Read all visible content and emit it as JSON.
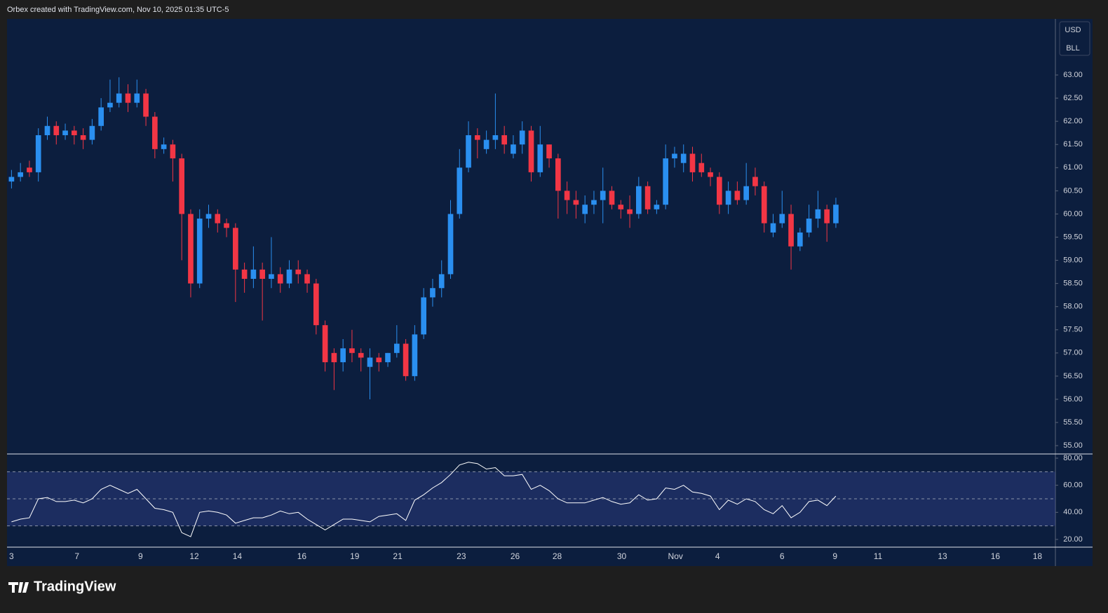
{
  "header_text": "Orbex created with TradingView.com, Nov 10, 2025 01:35 UTC-5",
  "currency": "USD",
  "unit": "BLL",
  "brand": "TradingView",
  "chart_data": [
    {
      "type": "candlestick",
      "up_color": "#2a8ff0",
      "down_color": "#f23645",
      "xlim": [
        -0.5,
        116.5
      ],
      "ylim": [
        54.82,
        64.21
      ],
      "yticks": [
        {
          "value": 55,
          "label": "55.00"
        },
        {
          "value": 55.5,
          "label": "55.50"
        },
        {
          "value": 56,
          "label": "56.00"
        },
        {
          "value": 56.5,
          "label": "56.50"
        },
        {
          "value": 57,
          "label": "57.00"
        },
        {
          "value": 57.5,
          "label": "57.50"
        },
        {
          "value": 58,
          "label": "58.00"
        },
        {
          "value": 58.5,
          "label": "58.50"
        },
        {
          "value": 59,
          "label": "59.00"
        },
        {
          "value": 59.5,
          "label": "59.50"
        },
        {
          "value": 60,
          "label": "60.00"
        },
        {
          "value": 60.5,
          "label": "60.50"
        },
        {
          "value": 61,
          "label": "61.00"
        },
        {
          "value": 61.5,
          "label": "61.50"
        },
        {
          "value": 62,
          "label": "62.00"
        },
        {
          "value": 62.5,
          "label": "62.50"
        },
        {
          "value": 63,
          "label": "63.00"
        }
      ],
      "open": [
        60.7,
        60.8,
        61.0,
        60.9,
        61.7,
        61.9,
        61.7,
        61.8,
        61.7,
        61.6,
        61.9,
        62.3,
        62.4,
        62.6,
        62.4,
        62.6,
        62.1,
        61.4,
        61.5,
        61.2,
        60.0,
        58.5,
        59.9,
        60.0,
        59.8,
        59.7,
        58.8,
        58.6,
        58.8,
        58.6,
        58.7,
        58.5,
        58.8,
        58.7,
        58.5,
        57.6,
        57.0,
        56.8,
        57.1,
        57.0,
        56.7,
        56.9,
        56.8,
        57.0,
        57.2,
        56.5,
        57.4,
        58.2,
        58.4,
        58.7,
        60.0,
        61.0,
        61.7,
        61.4,
        61.6,
        61.7,
        61.3,
        61.5,
        61.8,
        60.9,
        61.5,
        61.2,
        60.5,
        60.3,
        60.0,
        60.2,
        60.3,
        60.5,
        60.2,
        60.1,
        60.0,
        60.6,
        60.1,
        60.2,
        61.2,
        61.1,
        61.3,
        61.1,
        60.9,
        60.8,
        60.2,
        60.5,
        60.3,
        60.8,
        60.6,
        59.6,
        59.8,
        60.0,
        59.3,
        59.6,
        59.9,
        60.1,
        59.8
      ],
      "high": [
        60.95,
        61.1,
        61.15,
        61.85,
        62.1,
        62.0,
        61.95,
        61.9,
        61.85,
        62.05,
        62.5,
        62.9,
        62.95,
        62.8,
        62.9,
        62.7,
        62.2,
        61.65,
        61.6,
        61.3,
        60.1,
        60.1,
        60.2,
        60.1,
        59.9,
        59.8,
        58.95,
        59.3,
        58.95,
        59.5,
        58.85,
        59.0,
        59.0,
        58.8,
        58.6,
        57.7,
        57.1,
        57.3,
        57.5,
        57.1,
        57.1,
        57.0,
        57.0,
        57.6,
        57.3,
        57.6,
        58.4,
        58.6,
        59.0,
        60.3,
        61.4,
        62.0,
        61.85,
        61.8,
        62.6,
        61.9,
        61.7,
        62.0,
        61.9,
        61.9,
        61.5,
        61.3,
        60.7,
        60.5,
        60.4,
        60.5,
        61.0,
        60.6,
        60.3,
        60.4,
        60.8,
        60.7,
        60.3,
        61.5,
        61.45,
        61.5,
        61.45,
        61.3,
        61.0,
        60.9,
        60.7,
        60.7,
        61.1,
        61.0,
        60.7,
        60.0,
        60.5,
        60.2,
        59.7,
        60.2,
        60.5,
        60.2,
        60.35
      ],
      "low": [
        60.55,
        60.7,
        60.8,
        60.7,
        61.6,
        61.5,
        61.6,
        61.5,
        61.4,
        61.5,
        61.8,
        62.2,
        62.3,
        62.2,
        62.3,
        61.9,
        61.2,
        61.3,
        60.7,
        59.0,
        58.2,
        58.4,
        59.7,
        59.6,
        59.5,
        58.1,
        58.3,
        58.4,
        57.7,
        58.4,
        58.3,
        58.4,
        58.5,
        58.3,
        57.4,
        56.6,
        56.2,
        56.6,
        56.8,
        56.6,
        56.0,
        56.6,
        56.7,
        56.9,
        56.4,
        56.4,
        57.3,
        58.0,
        58.2,
        58.6,
        59.9,
        60.9,
        61.2,
        61.3,
        61.4,
        61.3,
        61.2,
        61.3,
        60.7,
        60.8,
        61.0,
        59.9,
        60.0,
        59.9,
        59.8,
        60.0,
        59.8,
        60.1,
        59.9,
        59.7,
        59.9,
        60.0,
        60.0,
        60.1,
        61.0,
        60.9,
        60.7,
        60.8,
        60.6,
        60.0,
        60.0,
        60.2,
        60.2,
        60.4,
        59.6,
        59.5,
        59.7,
        58.8,
        59.2,
        59.5,
        59.7,
        59.4,
        59.7
      ],
      "close": [
        60.8,
        60.9,
        60.9,
        61.7,
        61.9,
        61.7,
        61.8,
        61.7,
        61.6,
        61.9,
        62.3,
        62.4,
        62.6,
        62.4,
        62.6,
        62.1,
        61.4,
        61.5,
        61.2,
        60.0,
        58.5,
        59.9,
        60.0,
        59.8,
        59.7,
        58.8,
        58.6,
        58.8,
        58.6,
        58.7,
        58.5,
        58.8,
        58.7,
        58.5,
        57.6,
        56.8,
        56.8,
        57.1,
        57.0,
        56.9,
        56.9,
        56.8,
        57.0,
        57.2,
        56.5,
        57.4,
        58.2,
        58.4,
        58.7,
        60.0,
        61.0,
        61.7,
        61.6,
        61.6,
        61.7,
        61.5,
        61.5,
        61.8,
        60.9,
        61.5,
        61.2,
        60.5,
        60.3,
        60.2,
        60.2,
        60.3,
        60.5,
        60.2,
        60.1,
        60.0,
        60.6,
        60.1,
        60.2,
        61.2,
        61.3,
        61.3,
        60.9,
        60.9,
        60.8,
        60.2,
        60.5,
        60.3,
        60.6,
        60.6,
        59.8,
        59.8,
        60.0,
        59.3,
        59.6,
        59.9,
        60.1,
        59.8,
        60.2
      ]
    },
    {
      "type": "line",
      "color": "#ffffff",
      "band_color": "#3d4aa0",
      "xlim": [
        -0.5,
        116.5
      ],
      "ylim": [
        14.3,
        83.1
      ],
      "levels": [
        30,
        50,
        70
      ],
      "yticks": [
        {
          "value": 20,
          "label": "20.00"
        },
        {
          "value": 40,
          "label": "40.00"
        },
        {
          "value": 60,
          "label": "60.00"
        },
        {
          "value": 80,
          "label": "80.00"
        }
      ],
      "xticks": [
        {
          "value": 0,
          "label": "3"
        },
        {
          "value": 7.3,
          "label": "7"
        },
        {
          "value": 14.4,
          "label": "9"
        },
        {
          "value": 20.4,
          "label": "12"
        },
        {
          "value": 25.2,
          "label": "14"
        },
        {
          "value": 32.4,
          "label": "16"
        },
        {
          "value": 38.3,
          "label": "19"
        },
        {
          "value": 43.1,
          "label": "21"
        },
        {
          "value": 50.2,
          "label": "23"
        },
        {
          "value": 56.2,
          "label": "26"
        },
        {
          "value": 60.9,
          "label": "28"
        },
        {
          "value": 68.1,
          "label": "30"
        },
        {
          "value": 74.1,
          "label": "Nov"
        },
        {
          "value": 78.8,
          "label": "4"
        },
        {
          "value": 86,
          "label": "6"
        },
        {
          "value": 91.9,
          "label": "9"
        },
        {
          "value": 96.7,
          "label": "11"
        },
        {
          "value": 103.9,
          "label": "13"
        },
        {
          "value": 109.8,
          "label": "16"
        },
        {
          "value": 114.5,
          "label": "18"
        }
      ],
      "values": [
        33,
        35,
        36,
        50,
        51,
        48,
        48,
        49,
        47,
        50,
        57,
        60,
        57,
        54,
        57,
        50,
        43,
        42,
        40,
        25,
        22,
        40,
        41,
        40,
        38,
        32,
        34,
        36,
        36,
        38,
        41,
        39,
        40,
        35,
        31,
        27,
        31,
        35,
        35,
        34,
        33,
        37,
        38,
        39,
        34,
        49,
        53,
        58,
        62,
        68,
        75,
        77,
        76,
        72,
        73,
        67,
        67,
        68,
        57,
        60,
        56,
        50,
        47,
        47,
        47,
        49,
        51,
        48,
        46,
        47,
        53,
        49,
        50,
        58,
        57,
        60,
        55,
        54,
        52,
        42,
        49,
        46,
        50,
        48,
        42,
        39,
        45,
        36,
        40,
        48,
        49,
        45,
        52
      ]
    }
  ]
}
